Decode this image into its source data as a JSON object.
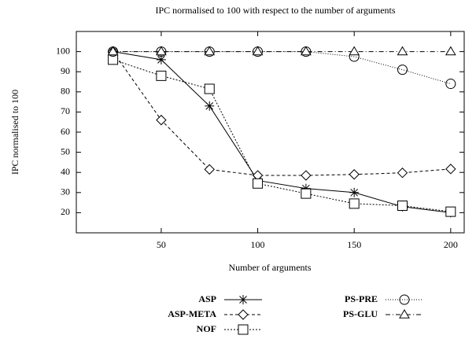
{
  "chart_data": {
    "type": "line",
    "title": "IPC normalised to 100 with respect to the number of arguments",
    "x_label": "Number of arguments",
    "y_label": "IPC normalised to 100",
    "x": [
      25,
      50,
      75,
      100,
      125,
      150,
      175,
      200
    ],
    "xlim": [
      6,
      207
    ],
    "xticks": [
      50,
      100,
      150,
      200
    ],
    "ylim": [
      10,
      110
    ],
    "yticks": [
      20,
      30,
      40,
      50,
      60,
      70,
      80,
      90,
      100
    ],
    "grid": false,
    "legend": "bottom",
    "series": [
      {
        "name": "ASP",
        "color": "#000000",
        "marker": "star",
        "dash": "solid",
        "values": [
          100,
          96,
          73,
          36,
          32,
          30,
          23,
          20
        ]
      },
      {
        "name": "ASP-META",
        "color": "#000000",
        "marker": "diamond",
        "dash": "dashed",
        "values": [
          100,
          66,
          41.5,
          38.5,
          38.5,
          39,
          39.8,
          41.7
        ]
      },
      {
        "name": "NOF",
        "color": "#000000",
        "marker": "square",
        "dash": "dotted",
        "values": [
          96,
          88,
          81.5,
          34.5,
          29.5,
          24.5,
          23.5,
          20.5
        ]
      },
      {
        "name": "PS-PRE",
        "color": "#000000",
        "marker": "circle",
        "dash": "fine-dotted",
        "values": [
          100,
          100,
          100,
          100,
          100,
          97.5,
          91,
          84
        ]
      },
      {
        "name": "PS-GLU",
        "color": "#000000",
        "marker": "triangle",
        "dash": "dash-dot",
        "values": [
          100,
          100,
          100,
          100,
          100,
          100,
          100,
          100
        ]
      }
    ]
  }
}
